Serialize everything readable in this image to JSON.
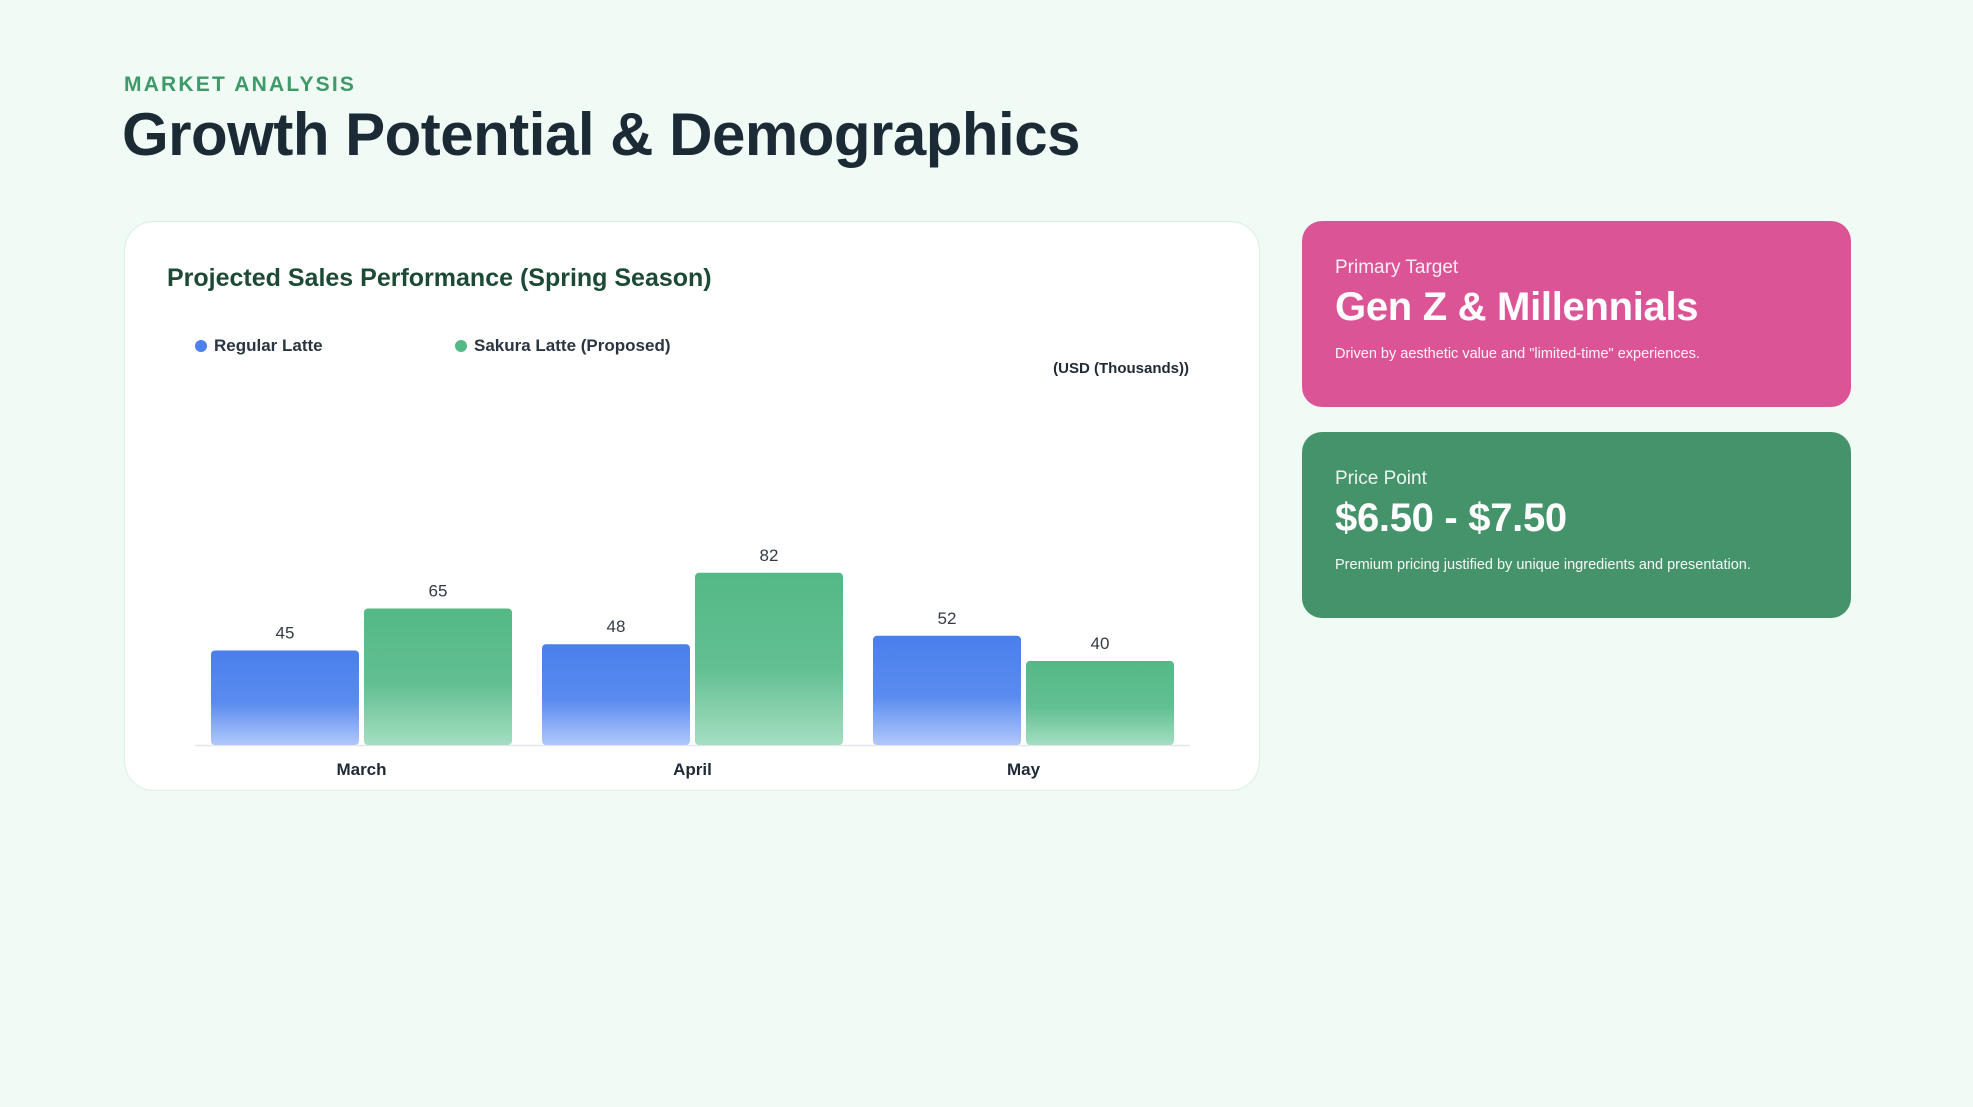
{
  "header": {
    "eyebrow": "MARKET ANALYSIS",
    "title": "Growth Potential & Demographics"
  },
  "cards": [
    {
      "label": "Primary Target",
      "value": "Gen Z & Millennials",
      "description": "Driven by aesthetic value and \"limited-time\" experiences.",
      "color": "#db5596"
    },
    {
      "label": "Price Point",
      "value": "$6.50 - $7.50",
      "description": "Premium pricing justified by unique ingredients and presentation.",
      "color": "#45936a"
    }
  ],
  "chart_data": {
    "type": "bar",
    "title": "Projected Sales Performance (Spring Season)",
    "unit_label": "(USD (Thousands))",
    "categories": [
      "March",
      "April",
      "May"
    ],
    "series": [
      {
        "name": "Regular Latte",
        "values": [
          45,
          48,
          52
        ],
        "color": "#4d80ec"
      },
      {
        "name": "Sakura Latte (Proposed)",
        "values": [
          65,
          82,
          40
        ],
        "color": "#55b887"
      }
    ],
    "ylim": [
      0,
      100
    ],
    "grid": false,
    "legend": "top-left",
    "data_labels": true
  }
}
